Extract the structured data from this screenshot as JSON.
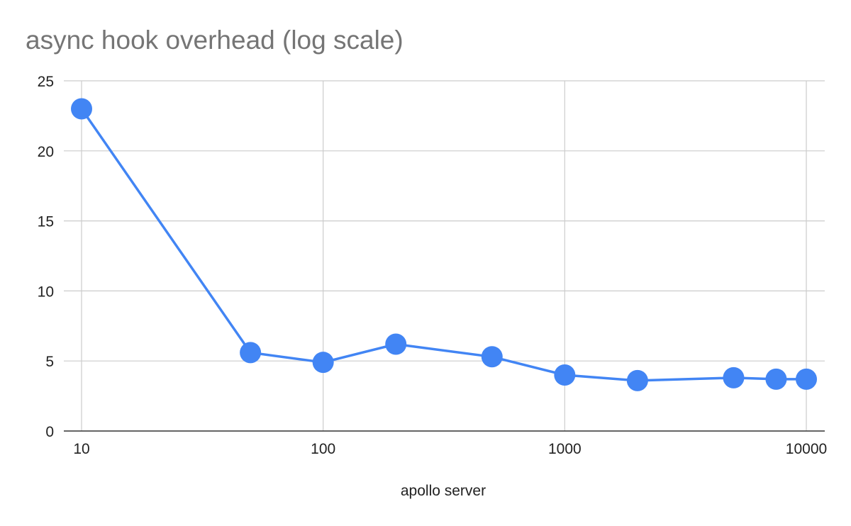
{
  "chart_data": {
    "type": "scatter",
    "title": "async hook overhead (log scale)",
    "xlabel": "apollo server",
    "ylabel": "",
    "x_scale": "log",
    "xlim": [
      10,
      10000
    ],
    "ylim": [
      0,
      25
    ],
    "x_ticks": [
      10,
      100,
      1000,
      10000
    ],
    "x_tick_labels": [
      "10",
      "100",
      "1000",
      "10000"
    ],
    "y_ticks": [
      0,
      5,
      10,
      15,
      20,
      25
    ],
    "y_tick_labels": [
      "0",
      "5",
      "10",
      "15",
      "20",
      "25"
    ],
    "grid": true,
    "legend": "none",
    "series": [
      {
        "color": "#4285f4",
        "points": [
          {
            "x": 10,
            "y": 23.0
          },
          {
            "x": 50,
            "y": 5.6
          },
          {
            "x": 100,
            "y": 4.9
          },
          {
            "x": 200,
            "y": 6.2
          },
          {
            "x": 500,
            "y": 5.3
          },
          {
            "x": 1000,
            "y": 4.0
          },
          {
            "x": 2000,
            "y": 3.6
          },
          {
            "x": 5000,
            "y": 3.8
          },
          {
            "x": 7500,
            "y": 3.7
          },
          {
            "x": 10000,
            "y": 3.7
          }
        ]
      }
    ],
    "colors": {
      "gridline": "#cccccc",
      "axis": "#333333",
      "series": "#4285f4",
      "title": "#757575"
    }
  }
}
